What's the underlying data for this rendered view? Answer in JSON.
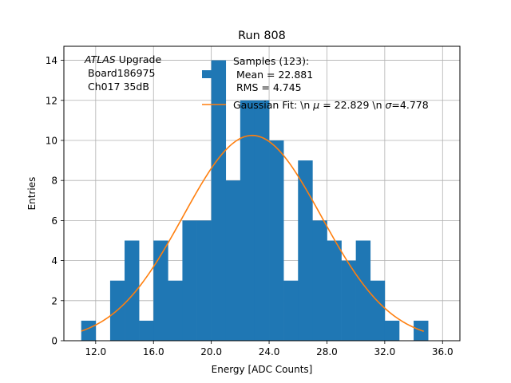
{
  "chart_data": {
    "type": "bar",
    "title": "Run 808",
    "xlabel": "Energy [ADC Counts]",
    "ylabel": "Entries",
    "xlim": [
      9.8,
      37.2
    ],
    "ylim": [
      0,
      14.7
    ],
    "grid": true,
    "xticks": [
      12.0,
      16.0,
      20.0,
      24.0,
      28.0,
      32.0,
      36.0
    ],
    "xtick_labels": [
      "12.0",
      "16.0",
      "20.0",
      "24.0",
      "28.0",
      "32.0",
      "36.0"
    ],
    "yticks": [
      0,
      2,
      4,
      6,
      8,
      10,
      12,
      14
    ],
    "ytick_labels": [
      "0",
      "2",
      "4",
      "6",
      "8",
      "10",
      "12",
      "14"
    ],
    "bin_width": 1,
    "bins": [
      {
        "x0": 11,
        "count": 1
      },
      {
        "x0": 12,
        "count": 0
      },
      {
        "x0": 13,
        "count": 3
      },
      {
        "x0": 14,
        "count": 5
      },
      {
        "x0": 15,
        "count": 1
      },
      {
        "x0": 16,
        "count": 5
      },
      {
        "x0": 17,
        "count": 3
      },
      {
        "x0": 18,
        "count": 6
      },
      {
        "x0": 19,
        "count": 6
      },
      {
        "x0": 20,
        "count": 14
      },
      {
        "x0": 21,
        "count": 8
      },
      {
        "x0": 22,
        "count": 12
      },
      {
        "x0": 23,
        "count": 12
      },
      {
        "x0": 24,
        "count": 10
      },
      {
        "x0": 25,
        "count": 3
      },
      {
        "x0": 26,
        "count": 9
      },
      {
        "x0": 27,
        "count": 6
      },
      {
        "x0": 28,
        "count": 5
      },
      {
        "x0": 29,
        "count": 4
      },
      {
        "x0": 30,
        "count": 5
      },
      {
        "x0": 31,
        "count": 3
      },
      {
        "x0": 32,
        "count": 1
      },
      {
        "x0": 33,
        "count": 0
      },
      {
        "x0": 34,
        "count": 1
      }
    ],
    "fit": {
      "amplitude": 10.25,
      "mu": 22.829,
      "sigma": 4.778,
      "x_range": [
        11.0,
        34.7
      ]
    },
    "colors": {
      "bars": "#1f77b4",
      "fit": "#ff7f0e",
      "grid": "#b0b0b0"
    },
    "annotation": {
      "line1_italic": "ATLAS",
      "line1_rest": " Upgrade",
      "line2": "Board186975",
      "line3": "Ch017 35dB"
    },
    "legend": {
      "placement": "top-right",
      "hist_label_line1": "Samples (123):",
      "hist_label_line2": "Mean = 22.881",
      "hist_label_line3": "RMS = 4.745",
      "fit_label_prefix": "Gaussian Fit: \\n ",
      "fit_mu_symbol": "μ",
      "fit_mu_text": " = 22.829 \\n ",
      "fit_sigma_symbol": "σ",
      "fit_sigma_text": "=4.778"
    }
  }
}
